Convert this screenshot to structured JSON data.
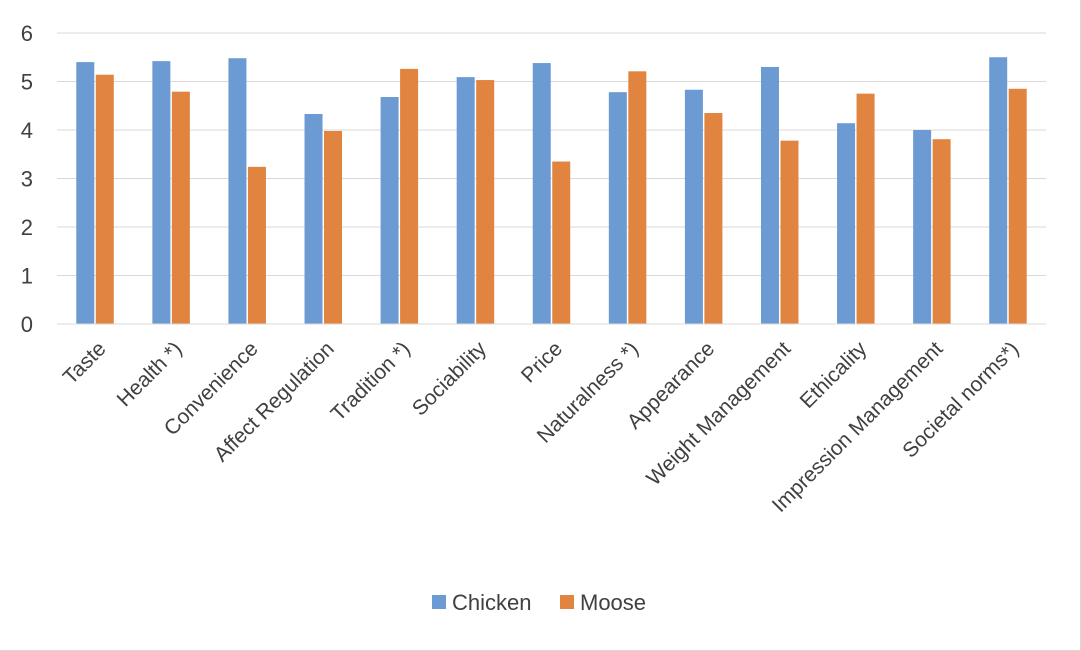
{
  "chart_data": {
    "type": "bar",
    "categories": [
      "Taste",
      "Health *)",
      "Convenience",
      "Affect Regulation",
      "Tradition *)",
      "Sociability",
      "Price",
      "Naturalness *)",
      "Appearance",
      "Weight Management",
      "Ethicality",
      "Impression Management",
      "Societal norms*)"
    ],
    "series": [
      {
        "name": "Chicken",
        "color": "#6b9bd2",
        "values": [
          5.4,
          5.42,
          5.48,
          4.33,
          4.68,
          5.09,
          5.38,
          4.78,
          4.83,
          5.3,
          4.14,
          4.0,
          5.5
        ]
      },
      {
        "name": "Moose",
        "color": "#e0843f",
        "values": [
          5.14,
          4.79,
          3.24,
          3.98,
          5.26,
          5.03,
          3.35,
          5.21,
          4.35,
          3.78,
          4.75,
          3.81,
          4.85
        ]
      }
    ],
    "ylim": [
      0,
      6
    ],
    "yticks": [
      "0",
      "1",
      "2",
      "3",
      "4",
      "5",
      "6"
    ],
    "grid": true,
    "legend_position": "bottom",
    "xlabel": "",
    "ylabel": "",
    "title": ""
  }
}
